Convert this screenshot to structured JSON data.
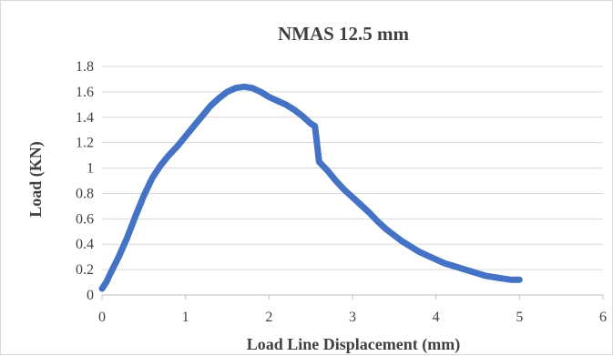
{
  "chart_data": {
    "type": "line",
    "title": "NMAS 12.5 mm",
    "xlabel": "Load Line Displacement (mm)",
    "ylabel": "Load (KN)",
    "xlim": [
      0,
      6
    ],
    "ylim": [
      0,
      1.8
    ],
    "xticks": [
      "0",
      "1",
      "2",
      "3",
      "4",
      "5",
      "6"
    ],
    "yticks": [
      "0",
      "0.2",
      "0.4",
      "0.6",
      "0.8",
      "1",
      "1.2",
      "1.4",
      "1.6",
      "1.8"
    ],
    "grid": "horizontal",
    "legend": "none",
    "series": [
      {
        "color": "#4472c4",
        "x": [
          0,
          0.05,
          0.1,
          0.2,
          0.3,
          0.4,
          0.5,
          0.6,
          0.7,
          0.8,
          0.9,
          1.0,
          1.1,
          1.2,
          1.3,
          1.4,
          1.5,
          1.6,
          1.7,
          1.8,
          1.9,
          2.0,
          2.1,
          2.2,
          2.3,
          2.4,
          2.5,
          2.55,
          2.6,
          2.7,
          2.8,
          2.9,
          3.0,
          3.1,
          3.2,
          3.3,
          3.4,
          3.5,
          3.6,
          3.7,
          3.8,
          3.9,
          4.0,
          4.1,
          4.2,
          4.3,
          4.4,
          4.5,
          4.6,
          4.7,
          4.8,
          4.9,
          5.0
        ],
        "y": [
          0.05,
          0.1,
          0.17,
          0.3,
          0.45,
          0.62,
          0.78,
          0.92,
          1.02,
          1.1,
          1.17,
          1.25,
          1.33,
          1.41,
          1.49,
          1.55,
          1.6,
          1.63,
          1.64,
          1.63,
          1.6,
          1.56,
          1.53,
          1.5,
          1.46,
          1.41,
          1.35,
          1.33,
          1.05,
          0.98,
          0.9,
          0.83,
          0.77,
          0.71,
          0.65,
          0.58,
          0.52,
          0.47,
          0.42,
          0.38,
          0.34,
          0.31,
          0.28,
          0.25,
          0.23,
          0.21,
          0.19,
          0.17,
          0.15,
          0.14,
          0.13,
          0.12,
          0.12
        ]
      }
    ]
  }
}
